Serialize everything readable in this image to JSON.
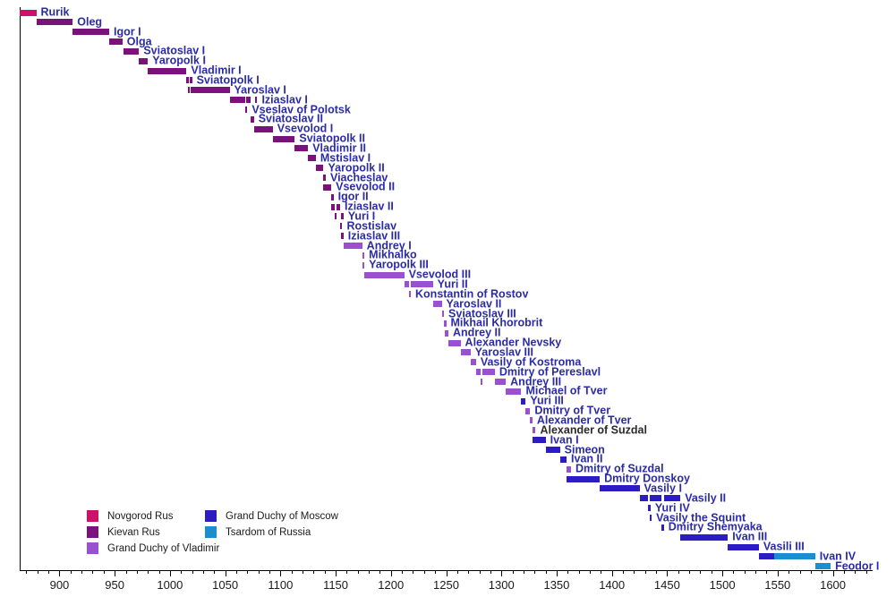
{
  "colors": {
    "link_label": "#2b2ba6",
    "plain_label": "#2a2a2a",
    "axis": "#000000",
    "tick_label": "#1a1a1a"
  },
  "chart_data": {
    "type": "bar",
    "variant": "horizontal-reign-timeline",
    "grid": false,
    "legend_position": "inside-bottom-left",
    "x_axis": {
      "min_year": 864,
      "max_year": 1636,
      "minor_tick_step": 10,
      "major_tick_step": 50,
      "tick_labels": [
        900,
        950,
        1000,
        1050,
        1100,
        1150,
        1200,
        1250,
        1300,
        1350,
        1400,
        1450,
        1500,
        1550,
        1600
      ]
    },
    "states": [
      {
        "key": "novgorod",
        "label": "Novgorod Rus",
        "color": "#cc1168",
        "legend_col": 0,
        "legend_row": 0
      },
      {
        "key": "kievan",
        "label": "Kievan Rus",
        "color": "#7b117b",
        "legend_col": 0,
        "legend_row": 1
      },
      {
        "key": "vladimir",
        "label": "Grand Duchy of Vladimir",
        "color": "#9b4fd1",
        "legend_col": 0,
        "legend_row": 2
      },
      {
        "key": "moscow",
        "label": "Grand Duchy of Moscow",
        "color": "#2b1dc3",
        "legend_col": 1,
        "legend_row": 0
      },
      {
        "key": "tsardom",
        "label": "Tsardom of Russia",
        "color": "#1b8ecf",
        "legend_col": 1,
        "legend_row": 1
      }
    ],
    "rulers": [
      {
        "name": "Rurik",
        "segments": [
          {
            "from": 862,
            "to": 879,
            "state": "novgorod"
          }
        ]
      },
      {
        "name": "Oleg",
        "segments": [
          {
            "from": 879,
            "to": 912,
            "state": "kievan"
          }
        ]
      },
      {
        "name": "Igor I",
        "segments": [
          {
            "from": 912,
            "to": 945,
            "state": "kievan"
          }
        ]
      },
      {
        "name": "Olga",
        "segments": [
          {
            "from": 945,
            "to": 957,
            "state": "kievan"
          }
        ]
      },
      {
        "name": "Sviatoslav I",
        "segments": [
          {
            "from": 958,
            "to": 972,
            "state": "kievan"
          }
        ]
      },
      {
        "name": "Yaropolk I",
        "segments": [
          {
            "from": 972,
            "to": 980,
            "state": "kievan"
          }
        ]
      },
      {
        "name": "Vladimir I",
        "segments": [
          {
            "from": 980,
            "to": 1015,
            "state": "kievan"
          }
        ]
      },
      {
        "name": "Sviatopolk I",
        "segments": [
          {
            "from": 1015,
            "to": 1016,
            "state": "kievan"
          },
          {
            "from": 1018,
            "to": 1019,
            "state": "kievan"
          }
        ]
      },
      {
        "name": "Yaroslav I",
        "segments": [
          {
            "from": 1016,
            "to": 1018,
            "state": "kievan"
          },
          {
            "from": 1019,
            "to": 1054,
            "state": "kievan"
          }
        ]
      },
      {
        "name": "Iziaslav I",
        "segments": [
          {
            "from": 1054,
            "to": 1068,
            "state": "kievan"
          },
          {
            "from": 1069,
            "to": 1073,
            "state": "kievan"
          },
          {
            "from": 1077,
            "to": 1078,
            "state": "kievan"
          }
        ]
      },
      {
        "name": "Vseslav of Polotsk",
        "segments": [
          {
            "from": 1068,
            "to": 1069,
            "state": "kievan"
          }
        ]
      },
      {
        "name": "Sviatoslav II",
        "segments": [
          {
            "from": 1073,
            "to": 1076,
            "state": "kievan"
          }
        ]
      },
      {
        "name": "Vsevolod I",
        "segments": [
          {
            "from": 1076,
            "to": 1093,
            "state": "kievan"
          }
        ]
      },
      {
        "name": "Sviatopolk II",
        "segments": [
          {
            "from": 1093,
            "to": 1113,
            "state": "kievan"
          }
        ]
      },
      {
        "name": "Vladimir II",
        "segments": [
          {
            "from": 1113,
            "to": 1125,
            "state": "kievan"
          }
        ]
      },
      {
        "name": "Mstislav I",
        "segments": [
          {
            "from": 1125,
            "to": 1132,
            "state": "kievan"
          }
        ]
      },
      {
        "name": "Yaropolk II",
        "segments": [
          {
            "from": 1132,
            "to": 1139,
            "state": "kievan"
          }
        ]
      },
      {
        "name": "Viacheslav",
        "segments": [
          {
            "from": 1139,
            "to": 1140,
            "state": "kievan"
          }
        ]
      },
      {
        "name": "Vsevolod II",
        "segments": [
          {
            "from": 1139,
            "to": 1146,
            "state": "kievan"
          }
        ]
      },
      {
        "name": "Igor II",
        "segments": [
          {
            "from": 1146,
            "to": 1147,
            "state": "kievan"
          }
        ]
      },
      {
        "name": "Iziaslav II",
        "segments": [
          {
            "from": 1146,
            "to": 1149,
            "state": "kievan"
          },
          {
            "from": 1151,
            "to": 1154,
            "state": "kievan"
          }
        ]
      },
      {
        "name": "Yuri I",
        "segments": [
          {
            "from": 1149,
            "to": 1151,
            "state": "kievan"
          },
          {
            "from": 1155,
            "to": 1157,
            "state": "kievan"
          }
        ]
      },
      {
        "name": "Rostislav",
        "segments": [
          {
            "from": 1154,
            "to": 1155,
            "state": "kievan"
          }
        ]
      },
      {
        "name": "Iziaslav III",
        "segments": [
          {
            "from": 1155,
            "to": 1157,
            "state": "kievan"
          }
        ]
      },
      {
        "name": "Andrey I",
        "segments": [
          {
            "from": 1157,
            "to": 1174,
            "state": "vladimir"
          }
        ]
      },
      {
        "name": "Mikhalko",
        "segments": [
          {
            "from": 1174,
            "to": 1176,
            "state": "vladimir"
          }
        ]
      },
      {
        "name": "Yaropolk III",
        "segments": [
          {
            "from": 1174,
            "to": 1175,
            "state": "vladimir"
          }
        ]
      },
      {
        "name": "Vsevolod III",
        "segments": [
          {
            "from": 1176,
            "to": 1212,
            "state": "vladimir"
          }
        ]
      },
      {
        "name": "Yuri II",
        "segments": [
          {
            "from": 1212,
            "to": 1216,
            "state": "vladimir"
          },
          {
            "from": 1218,
            "to": 1238,
            "state": "vladimir"
          }
        ]
      },
      {
        "name": "Konstantin of Rostov",
        "segments": [
          {
            "from": 1216,
            "to": 1218,
            "state": "vladimir"
          }
        ]
      },
      {
        "name": "Yaroslav II",
        "segments": [
          {
            "from": 1238,
            "to": 1246,
            "state": "vladimir"
          }
        ]
      },
      {
        "name": "Sviatoslav III",
        "segments": [
          {
            "from": 1246,
            "to": 1248,
            "state": "vladimir"
          }
        ]
      },
      {
        "name": "Mikhail Khorobrit",
        "segments": [
          {
            "from": 1248,
            "to": 1249,
            "state": "vladimir"
          }
        ]
      },
      {
        "name": "Andrey II",
        "segments": [
          {
            "from": 1249,
            "to": 1252,
            "state": "vladimir"
          }
        ]
      },
      {
        "name": "Alexander Nevsky",
        "segments": [
          {
            "from": 1252,
            "to": 1263,
            "state": "vladimir"
          }
        ]
      },
      {
        "name": "Yaroslav III",
        "segments": [
          {
            "from": 1263,
            "to": 1272,
            "state": "vladimir"
          }
        ]
      },
      {
        "name": "Vasily of Kostroma",
        "segments": [
          {
            "from": 1272,
            "to": 1277,
            "state": "vladimir"
          }
        ]
      },
      {
        "name": "Dmitry of Pereslavl",
        "segments": [
          {
            "from": 1277,
            "to": 1281,
            "state": "vladimir"
          },
          {
            "from": 1283,
            "to": 1294,
            "state": "vladimir"
          }
        ]
      },
      {
        "name": "Andrey III",
        "segments": [
          {
            "from": 1281,
            "to": 1283,
            "state": "vladimir"
          },
          {
            "from": 1294,
            "to": 1304,
            "state": "vladimir"
          }
        ]
      },
      {
        "name": "Michael of Tver",
        "segments": [
          {
            "from": 1304,
            "to": 1318,
            "state": "vladimir"
          }
        ]
      },
      {
        "name": "Yuri III",
        "segments": [
          {
            "from": 1318,
            "to": 1322,
            "state": "moscow"
          }
        ]
      },
      {
        "name": "Dmitry of Tver",
        "segments": [
          {
            "from": 1322,
            "to": 1326,
            "state": "vladimir"
          }
        ]
      },
      {
        "name": "Alexander of Tver",
        "segments": [
          {
            "from": 1326,
            "to": 1328,
            "state": "vladimir"
          }
        ]
      },
      {
        "name": "Alexander of Suzdal",
        "link": false,
        "segments": [
          {
            "from": 1328,
            "to": 1331,
            "state": "vladimir"
          }
        ]
      },
      {
        "name": "Ivan I",
        "segments": [
          {
            "from": 1328,
            "to": 1340,
            "state": "moscow"
          }
        ]
      },
      {
        "name": "Simeon",
        "segments": [
          {
            "from": 1340,
            "to": 1353,
            "state": "moscow"
          }
        ]
      },
      {
        "name": "Ivan II",
        "segments": [
          {
            "from": 1353,
            "to": 1359,
            "state": "moscow"
          }
        ]
      },
      {
        "name": "Dmitry of Suzdal",
        "segments": [
          {
            "from": 1359,
            "to": 1363,
            "state": "vladimir"
          }
        ]
      },
      {
        "name": "Dmitry Donskoy",
        "segments": [
          {
            "from": 1359,
            "to": 1389,
            "state": "moscow"
          }
        ]
      },
      {
        "name": "Vasily I",
        "segments": [
          {
            "from": 1389,
            "to": 1425,
            "state": "moscow"
          }
        ]
      },
      {
        "name": "Vasily II",
        "segments": [
          {
            "from": 1425,
            "to": 1433,
            "state": "moscow"
          },
          {
            "from": 1434,
            "to": 1445,
            "state": "moscow"
          },
          {
            "from": 1447,
            "to": 1462,
            "state": "moscow"
          }
        ]
      },
      {
        "name": "Yuri IV",
        "segments": [
          {
            "from": 1433,
            "to": 1434,
            "state": "moscow"
          }
        ]
      },
      {
        "name": "Vasily the Squint",
        "segments": [
          {
            "from": 1434,
            "to": 1435,
            "state": "moscow"
          }
        ]
      },
      {
        "name": "Dmitry Shemyaka",
        "segments": [
          {
            "from": 1445,
            "to": 1447,
            "state": "moscow"
          }
        ]
      },
      {
        "name": "Ivan III",
        "segments": [
          {
            "from": 1462,
            "to": 1505,
            "state": "moscow"
          }
        ]
      },
      {
        "name": "Vasili III",
        "segments": [
          {
            "from": 1505,
            "to": 1533,
            "state": "moscow"
          }
        ]
      },
      {
        "name": "Ivan IV",
        "segments": [
          {
            "from": 1533,
            "to": 1547,
            "state": "moscow"
          },
          {
            "from": 1547,
            "to": 1584,
            "state": "tsardom"
          }
        ]
      },
      {
        "name": "Feodor I",
        "segments": [
          {
            "from": 1584,
            "to": 1598,
            "state": "tsardom"
          }
        ]
      }
    ]
  }
}
